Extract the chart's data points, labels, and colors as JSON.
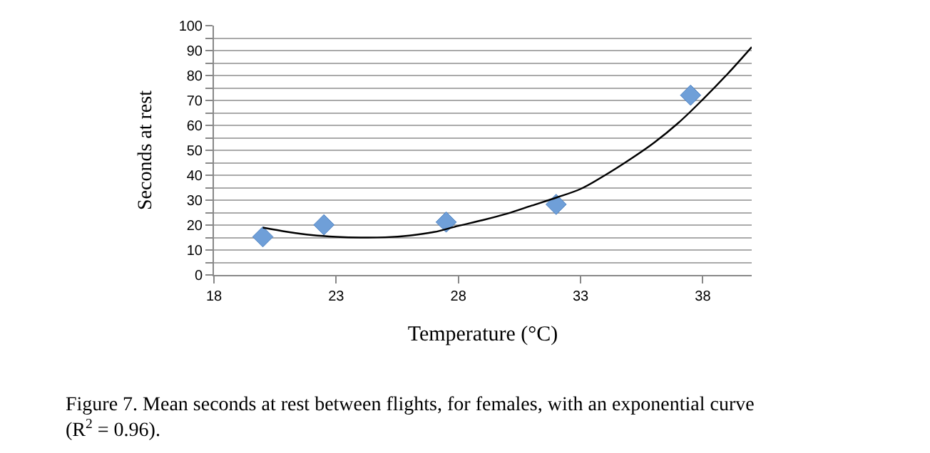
{
  "chart_data": {
    "type": "scatter",
    "xlabel": "Temperature (°C)",
    "ylabel": "Seconds at rest",
    "x": [
      20,
      22.5,
      27.5,
      32,
      37.5
    ],
    "series": [
      {
        "color": "#6f9fd8",
        "values": [
          15.3,
          20.1,
          21.2,
          28.3,
          72.1
        ],
        "marker": "diamond"
      },
      {
        "type": "line",
        "color": "#000000",
        "marker": "none",
        "x": [
          20,
          21,
          22,
          23,
          24,
          25,
          26,
          27,
          28,
          29,
          30,
          31,
          32,
          33,
          34,
          35,
          36,
          37,
          38,
          39,
          40
        ],
        "values": [
          19,
          17.3,
          16,
          15.3,
          15,
          15.1,
          15.8,
          17.2,
          19.7,
          22,
          24.6,
          27.8,
          31,
          34.5,
          40,
          46.2,
          53,
          61,
          70.4,
          80.5,
          91.4
        ]
      }
    ],
    "xlim": [
      18,
      40
    ],
    "xticks": [
      18,
      23,
      28,
      33,
      38
    ],
    "ylim": [
      0,
      100
    ],
    "yticks": [
      0,
      {
        "value": 5,
        "label": null
      },
      10,
      {
        "value": 15,
        "label": null
      },
      20,
      {
        "value": 25,
        "label": null
      },
      30,
      {
        "value": 35,
        "label": null
      },
      40,
      {
        "value": 45,
        "label": null
      },
      50,
      {
        "value": 55,
        "label": null
      },
      60,
      {
        "value": 65,
        "label": null
      },
      70,
      {
        "value": 75,
        "label": null
      },
      80,
      {
        "value": 85,
        "label": null
      },
      90,
      {
        "value": 95,
        "label": null
      },
      100
    ],
    "grid": "y",
    "legend": false,
    "annotations": [
      "Figure 7. Mean seconds at rest between flights, for females, with an exponential curve\n(R$^{2}$ = 0.96)."
    ]
  }
}
